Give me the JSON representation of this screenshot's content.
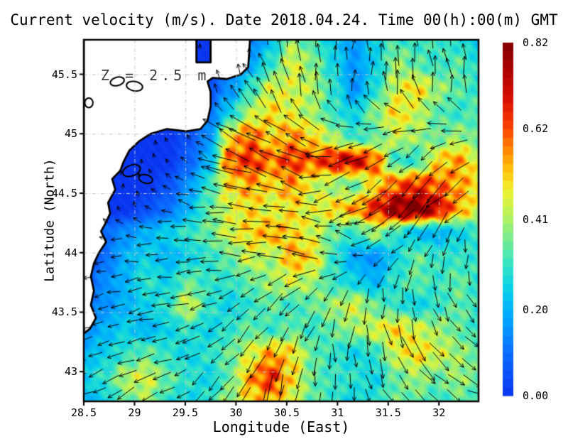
{
  "title": "Current velocity (m/s). Date 2018.04.24. Time 00(h):00(m) GMT",
  "annotation": "Z = 2.5 m",
  "xlabel": "Longitude (East)",
  "ylabel": "Latitude (North)",
  "chart_data": {
    "type": "heatmap",
    "overlay": "quiver",
    "quantity": "Current velocity",
    "units": "m/s",
    "date": "2018.04.24",
    "time": "00(h):00(m) GMT",
    "depth_m": 2.5,
    "x_range": [
      28.5,
      32.39
    ],
    "y_range": [
      42.75,
      45.79
    ],
    "grid_on": true,
    "x_ticks": {
      "values": [
        28.5,
        29,
        29.5,
        30,
        30.5,
        31,
        31.5,
        32
      ],
      "labels": [
        "28.5",
        "29",
        "29.5",
        "30",
        "30.5",
        "31",
        "31.5",
        "32"
      ]
    },
    "y_ticks": {
      "values": [
        43,
        43.5,
        44,
        44.5,
        45,
        45.5
      ],
      "labels": [
        "43",
        "43.5",
        "44",
        "44.5",
        "45",
        "45.5"
      ]
    },
    "colorbar": {
      "min": 0,
      "max": 0.82,
      "segments": 41,
      "tick_values": [
        0,
        0.2,
        0.41,
        0.62,
        0.82
      ],
      "tick_labels": [
        "0.00",
        "0.20",
        "0.41",
        "0.62",
        "0.82"
      ]
    },
    "colormap_stops": [
      [
        0,
        "#0a35f0"
      ],
      [
        0.12,
        "#0a6cff"
      ],
      [
        0.22,
        "#00a6ff"
      ],
      [
        0.3,
        "#06d0e9"
      ],
      [
        0.38,
        "#3ae6c0"
      ],
      [
        0.45,
        "#7dec8d"
      ],
      [
        0.52,
        "#bdf357"
      ],
      [
        0.58,
        "#eef22f"
      ],
      [
        0.64,
        "#ffc40a"
      ],
      [
        0.7,
        "#ff8400"
      ],
      [
        0.76,
        "#fb4000"
      ],
      [
        0.84,
        "#d90f00"
      ],
      [
        0.93,
        "#a80000"
      ],
      [
        1,
        "#800000"
      ]
    ],
    "speed_grid": {
      "lon_start": 28.5,
      "lon_end": 32.39,
      "lat_start": 45.79,
      "lat_end": 42.75,
      "values": [
        [
          0,
          0,
          0,
          0,
          0,
          0,
          0,
          0.1,
          0.12,
          0.22,
          0.4,
          0.32,
          0.24,
          0.16,
          0.26,
          0.32,
          0.3,
          0.32,
          0.28,
          0.24
        ],
        [
          0,
          0,
          0,
          0,
          0,
          0,
          0,
          0.12,
          0.18,
          0.3,
          0.46,
          0.38,
          0.26,
          0.16,
          0.24,
          0.4,
          0.34,
          0.3,
          0.34,
          0.28
        ],
        [
          0,
          0,
          0,
          0,
          0,
          0,
          0.05,
          0.15,
          0.3,
          0.45,
          0.45,
          0.42,
          0.3,
          0.15,
          0.28,
          0.44,
          0.5,
          0.4,
          0.34,
          0.3
        ],
        [
          0,
          0,
          0,
          0,
          0,
          0.05,
          0.1,
          0.25,
          0.42,
          0.5,
          0.46,
          0.4,
          0.3,
          0.25,
          0.38,
          0.5,
          0.44,
          0.34,
          0.3,
          0.34
        ],
        [
          0,
          0,
          0,
          0,
          0,
          0.05,
          0.15,
          0.5,
          0.6,
          0.5,
          0.56,
          0.5,
          0.4,
          0.3,
          0.34,
          0.44,
          0.4,
          0.35,
          0.4,
          0.34
        ],
        [
          0,
          0,
          0,
          0,
          0,
          0.08,
          0.2,
          0.6,
          0.65,
          0.58,
          0.64,
          0.6,
          0.68,
          0.72,
          0.6,
          0.3,
          0.3,
          0.5,
          0.55,
          0.45
        ],
        [
          0,
          0,
          0,
          0,
          0.05,
          0.15,
          0.3,
          0.5,
          0.55,
          0.5,
          0.56,
          0.45,
          0.4,
          0.35,
          0.5,
          0.6,
          0.65,
          0.6,
          0.55,
          0.5
        ],
        [
          0,
          0,
          0,
          0.05,
          0.1,
          0.2,
          0.35,
          0.45,
          0.5,
          0.45,
          0.5,
          0.45,
          0.5,
          0.55,
          0.65,
          0.8,
          0.82,
          0.72,
          0.55,
          0.45
        ],
        [
          0,
          0.1,
          0.15,
          0.2,
          0.25,
          0.3,
          0.35,
          0.45,
          0.5,
          0.55,
          0.5,
          0.45,
          0.35,
          0.3,
          0.4,
          0.3,
          0.22,
          0.2,
          0.25,
          0.3
        ],
        [
          0,
          0.1,
          0.2,
          0.25,
          0.2,
          0.25,
          0.3,
          0.35,
          0.45,
          0.4,
          0.55,
          0.5,
          0.3,
          0.18,
          0.15,
          0.25,
          0.35,
          0.3,
          0.3,
          0.3
        ],
        [
          0.05,
          0.15,
          0.2,
          0.3,
          0.25,
          0.35,
          0.3,
          0.3,
          0.35,
          0.4,
          0.45,
          0.4,
          0.3,
          0.25,
          0.2,
          0.3,
          0.35,
          0.3,
          0.35,
          0.3
        ],
        [
          0.1,
          0.15,
          0.2,
          0.25,
          0.3,
          0.45,
          0.3,
          0.25,
          0.3,
          0.35,
          0.3,
          0.35,
          0.4,
          0.45,
          0.35,
          0.3,
          0.25,
          0.3,
          0.35,
          0.3
        ],
        [
          0.15,
          0.2,
          0.25,
          0.2,
          0.25,
          0.3,
          0.25,
          0.3,
          0.35,
          0.3,
          0.35,
          0.3,
          0.35,
          0.4,
          0.45,
          0.5,
          0.45,
          0.4,
          0.35,
          0.3
        ],
        [
          0.2,
          0.25,
          0.3,
          0.35,
          0.3,
          0.25,
          0.3,
          0.35,
          0.45,
          0.55,
          0.5,
          0.35,
          0.3,
          0.25,
          0.3,
          0.45,
          0.5,
          0.45,
          0.4,
          0.35
        ],
        [
          0.25,
          0.3,
          0.42,
          0.45,
          0.35,
          0.3,
          0.25,
          0.35,
          0.55,
          0.65,
          0.5,
          0.35,
          0.3,
          0.3,
          0.25,
          0.35,
          0.4,
          0.35,
          0.4,
          0.35
        ],
        [
          0.2,
          0.25,
          0.35,
          0.4,
          0.3,
          0.25,
          0.3,
          0.4,
          0.5,
          0.55,
          0.45,
          0.35,
          0.3,
          0.25,
          0.3,
          0.35,
          0.35,
          0.3,
          0.35,
          0.3
        ]
      ]
    },
    "flow_angles_deg": {
      "values": [
        [
          60,
          70,
          80,
          95,
          100,
          90,
          85,
          90,
          95,
          100
        ],
        [
          50,
          60,
          90,
          110,
          120,
          100,
          90,
          95,
          100,
          95
        ],
        [
          45,
          55,
          120,
          150,
          160,
          150,
          200,
          215,
          215,
          200
        ],
        [
          40,
          90,
          160,
          170,
          165,
          160,
          210,
          220,
          225,
          215
        ],
        [
          180,
          185,
          180,
          175,
          180,
          170,
          160,
          220,
          250,
          270
        ],
        [
          190,
          195,
          190,
          200,
          210,
          230,
          250,
          270,
          290,
          300
        ],
        [
          200,
          200,
          195,
          220,
          240,
          260,
          270,
          290,
          310,
          330
        ],
        [
          210,
          205,
          210,
          230,
          250,
          265,
          280,
          300,
          320,
          340
        ]
      ]
    },
    "arrow_seed": 7,
    "arrow_spacing_px": 23,
    "coastline": [
      [
        28.5,
        45.81
      ],
      [
        29.61,
        45.81
      ],
      [
        29.61,
        45.6
      ],
      [
        29.75,
        45.6
      ],
      [
        29.75,
        45.81
      ],
      [
        30.14,
        45.81
      ],
      [
        30.12,
        45.56
      ],
      [
        30.05,
        45.5
      ],
      [
        29.91,
        45.46
      ],
      [
        29.77,
        45.47
      ],
      [
        29.72,
        45.44
      ],
      [
        29.75,
        45.35
      ],
      [
        29.75,
        45.23
      ],
      [
        29.72,
        45.11
      ],
      [
        29.65,
        45.04
      ],
      [
        29.51,
        45.02
      ],
      [
        29.32,
        45.04
      ],
      [
        29.16,
        45.0
      ],
      [
        29.05,
        44.94
      ],
      [
        28.95,
        44.86
      ],
      [
        28.89,
        44.76
      ],
      [
        28.86,
        44.69
      ],
      [
        28.78,
        44.62
      ],
      [
        28.81,
        44.53
      ],
      [
        28.74,
        44.42
      ],
      [
        28.76,
        44.33
      ],
      [
        28.71,
        44.24
      ],
      [
        28.67,
        44.18
      ],
      [
        28.72,
        44.09
      ],
      [
        28.65,
        44.0
      ],
      [
        28.6,
        43.91
      ],
      [
        28.57,
        43.8
      ],
      [
        28.6,
        43.68
      ],
      [
        28.57,
        43.56
      ],
      [
        28.62,
        43.45
      ],
      [
        28.56,
        43.36
      ],
      [
        28.5,
        43.32
      ]
    ],
    "lagoons": [
      [
        28.83,
        45.44,
        0.07,
        0.035,
        -15
      ],
      [
        29.0,
        45.4,
        0.08,
        0.04,
        10
      ],
      [
        28.97,
        44.69,
        0.09,
        0.045,
        -20
      ],
      [
        29.11,
        44.62,
        0.07,
        0.035,
        15
      ],
      [
        28.55,
        45.26,
        0.04,
        0.04,
        0
      ]
    ]
  }
}
